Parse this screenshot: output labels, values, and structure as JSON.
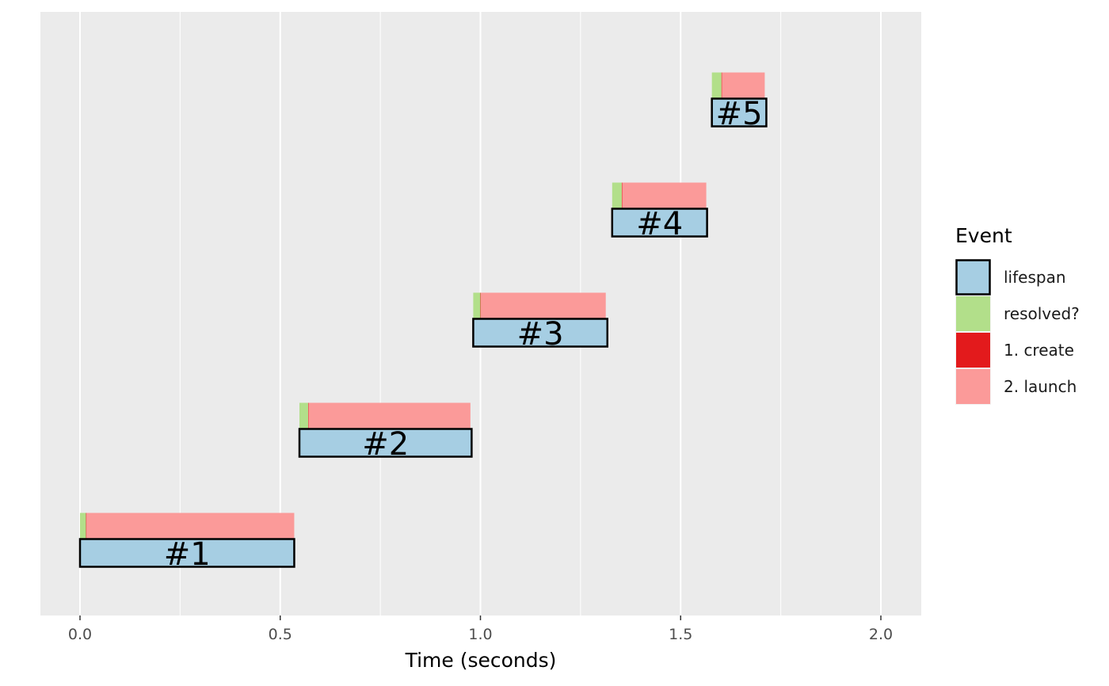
{
  "chart_data": {
    "type": "timeline",
    "xlabel": "Time (seconds)",
    "xlim": [
      -0.1,
      2.1
    ],
    "x_ticks": [
      0.0,
      0.5,
      1.0,
      1.5,
      2.0
    ],
    "x_tick_labels": [
      "0.0",
      "0.5",
      "1.0",
      "1.5",
      "2.0"
    ],
    "grid": true,
    "legend": {
      "title": "Event",
      "position": "right",
      "entries": [
        {
          "key": "lifespan",
          "label": "lifespan",
          "color": "#a6cee3"
        },
        {
          "key": "resolved",
          "label": "resolved?",
          "color": "#b2df8a"
        },
        {
          "key": "create",
          "label": "1. create",
          "color": "#e31a1c"
        },
        {
          "key": "launch",
          "label": "2. launch",
          "color": "#fb9a99"
        }
      ]
    },
    "tasks": [
      {
        "label": "#1",
        "lifespan": [
          0.0,
          0.535
        ],
        "resolved": [
          0.0,
          0.015
        ],
        "create": [
          0.015,
          0.016
        ],
        "launch": [
          0.016,
          0.535
        ]
      },
      {
        "label": "#2",
        "lifespan": [
          0.548,
          0.978
        ],
        "resolved": [
          0.548,
          0.57
        ],
        "create": [
          0.57,
          0.571
        ],
        "launch": [
          0.571,
          0.975
        ]
      },
      {
        "label": "#3",
        "lifespan": [
          0.982,
          1.317
        ],
        "resolved": [
          0.982,
          1.0
        ],
        "create": [
          1.0,
          1.001
        ],
        "launch": [
          1.001,
          1.313
        ]
      },
      {
        "label": "#4",
        "lifespan": [
          1.329,
          1.566
        ],
        "resolved": [
          1.329,
          1.353
        ],
        "create": [
          1.353,
          1.354
        ],
        "launch": [
          1.354,
          1.564
        ]
      },
      {
        "label": "#5",
        "lifespan": [
          1.578,
          1.714
        ],
        "resolved": [
          1.578,
          1.602
        ],
        "create": [
          1.602,
          1.603
        ],
        "launch": [
          1.603,
          1.71
        ]
      }
    ]
  }
}
